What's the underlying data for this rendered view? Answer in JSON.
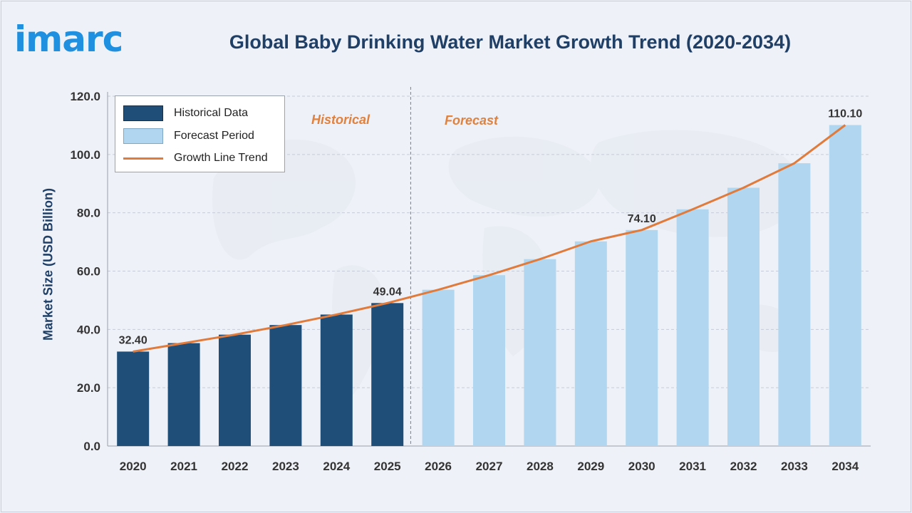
{
  "logo": "imarc",
  "title": "Global Baby Drinking Water Market Growth Trend (2020-2034)",
  "colors": {
    "historical": "#1f4e79",
    "forecast": "#b1d6ef",
    "trend": "#e07b3c",
    "title": "#1f3f66",
    "brand": "#1f8fe0"
  },
  "legend": {
    "historical": "Historical Data",
    "forecast": "Forecast Period",
    "trend": "Growth Line Trend"
  },
  "phase_labels": {
    "historical": "Historical",
    "forecast": "Forecast"
  },
  "chart_data": {
    "type": "bar",
    "title": "Global Baby Drinking Water Market Growth Trend (2020-2034)",
    "xlabel": "",
    "ylabel": "Market Size (USD Billion)",
    "ylim": [
      0,
      120
    ],
    "yticks": [
      "0.0",
      "20.0",
      "40.0",
      "60.0",
      "80.0",
      "100.0",
      "120.0"
    ],
    "ytick_values": [
      0,
      20,
      40,
      60,
      80,
      100,
      120
    ],
    "grid": true,
    "legend_position": "top-left",
    "categories": [
      "2020",
      "2021",
      "2022",
      "2023",
      "2024",
      "2025",
      "2026",
      "2027",
      "2028",
      "2029",
      "2030",
      "2031",
      "2032",
      "2033",
      "2034"
    ],
    "values": [
      32.4,
      35.3,
      38.2,
      41.5,
      45.1,
      49.04,
      53.6,
      58.6,
      64.1,
      70.2,
      74.1,
      81.2,
      88.6,
      97.0,
      110.1
    ],
    "period": [
      "historical",
      "historical",
      "historical",
      "historical",
      "historical",
      "historical",
      "forecast",
      "forecast",
      "forecast",
      "forecast",
      "forecast",
      "forecast",
      "forecast",
      "forecast",
      "forecast"
    ],
    "data_labels": [
      {
        "index": 0,
        "text": "32.40"
      },
      {
        "index": 5,
        "text": "49.04"
      },
      {
        "index": 10,
        "text": "74.10"
      },
      {
        "index": 14,
        "text": "110.10"
      }
    ]
  }
}
